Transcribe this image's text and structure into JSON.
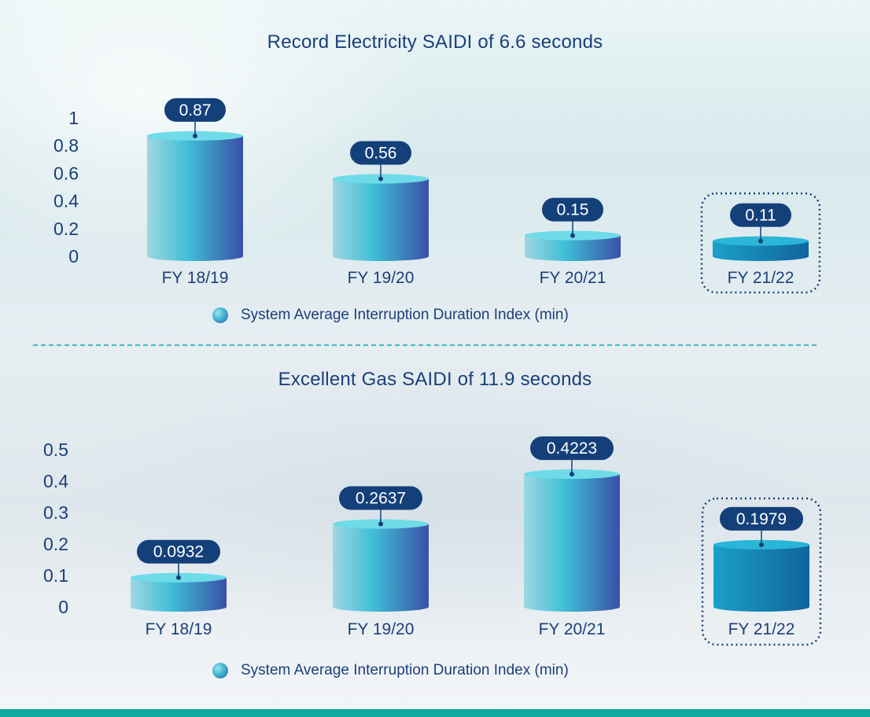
{
  "chart_data": [
    {
      "type": "bar",
      "title": "Record Electricity SAIDI of 6.6 seconds",
      "categories": [
        "FY 18/19",
        "FY 19/20",
        "FY 20/21",
        "FY 21/22"
      ],
      "values": [
        0.87,
        0.56,
        0.15,
        0.11
      ],
      "value_labels": [
        "0.87",
        "0.56",
        "0.15",
        "0.11"
      ],
      "y_ticks": [
        "0",
        "0.2",
        "0.4",
        "0.6",
        "0.8",
        "1"
      ],
      "ylim": [
        0,
        1
      ],
      "highlighted_category": "FY 21/22",
      "legend": "System Average Interruption Duration Index (min)",
      "legend_position": "bottom-center",
      "grid": false
    },
    {
      "type": "bar",
      "title": "Excellent Gas SAIDI of 11.9 seconds",
      "categories": [
        "FY 18/19",
        "FY 19/20",
        "FY 20/21",
        "FY 21/22"
      ],
      "values": [
        0.0932,
        0.2637,
        0.4223,
        0.1979
      ],
      "value_labels": [
        "0.0932",
        "0.2637",
        "0.4223",
        "0.1979"
      ],
      "y_ticks": [
        "0",
        "0.1",
        "0.2",
        "0.3",
        "0.4",
        "0.5"
      ],
      "ylim": [
        0,
        0.5
      ],
      "highlighted_category": "FY 21/22",
      "legend": "System Average Interruption Duration Index (min)",
      "legend_position": "bottom-center",
      "grid": false
    }
  ],
  "colors": {
    "title": "#1b3f7a",
    "label_pill": "#14407a",
    "bar_light": "#9fd7e2",
    "bar_mid": "#3fbfd6",
    "bar_dark": "#3a50a8",
    "bar_highlight": "#1784b8",
    "divider": "#47b9c8",
    "bottom_bar": "#12a9a3"
  }
}
